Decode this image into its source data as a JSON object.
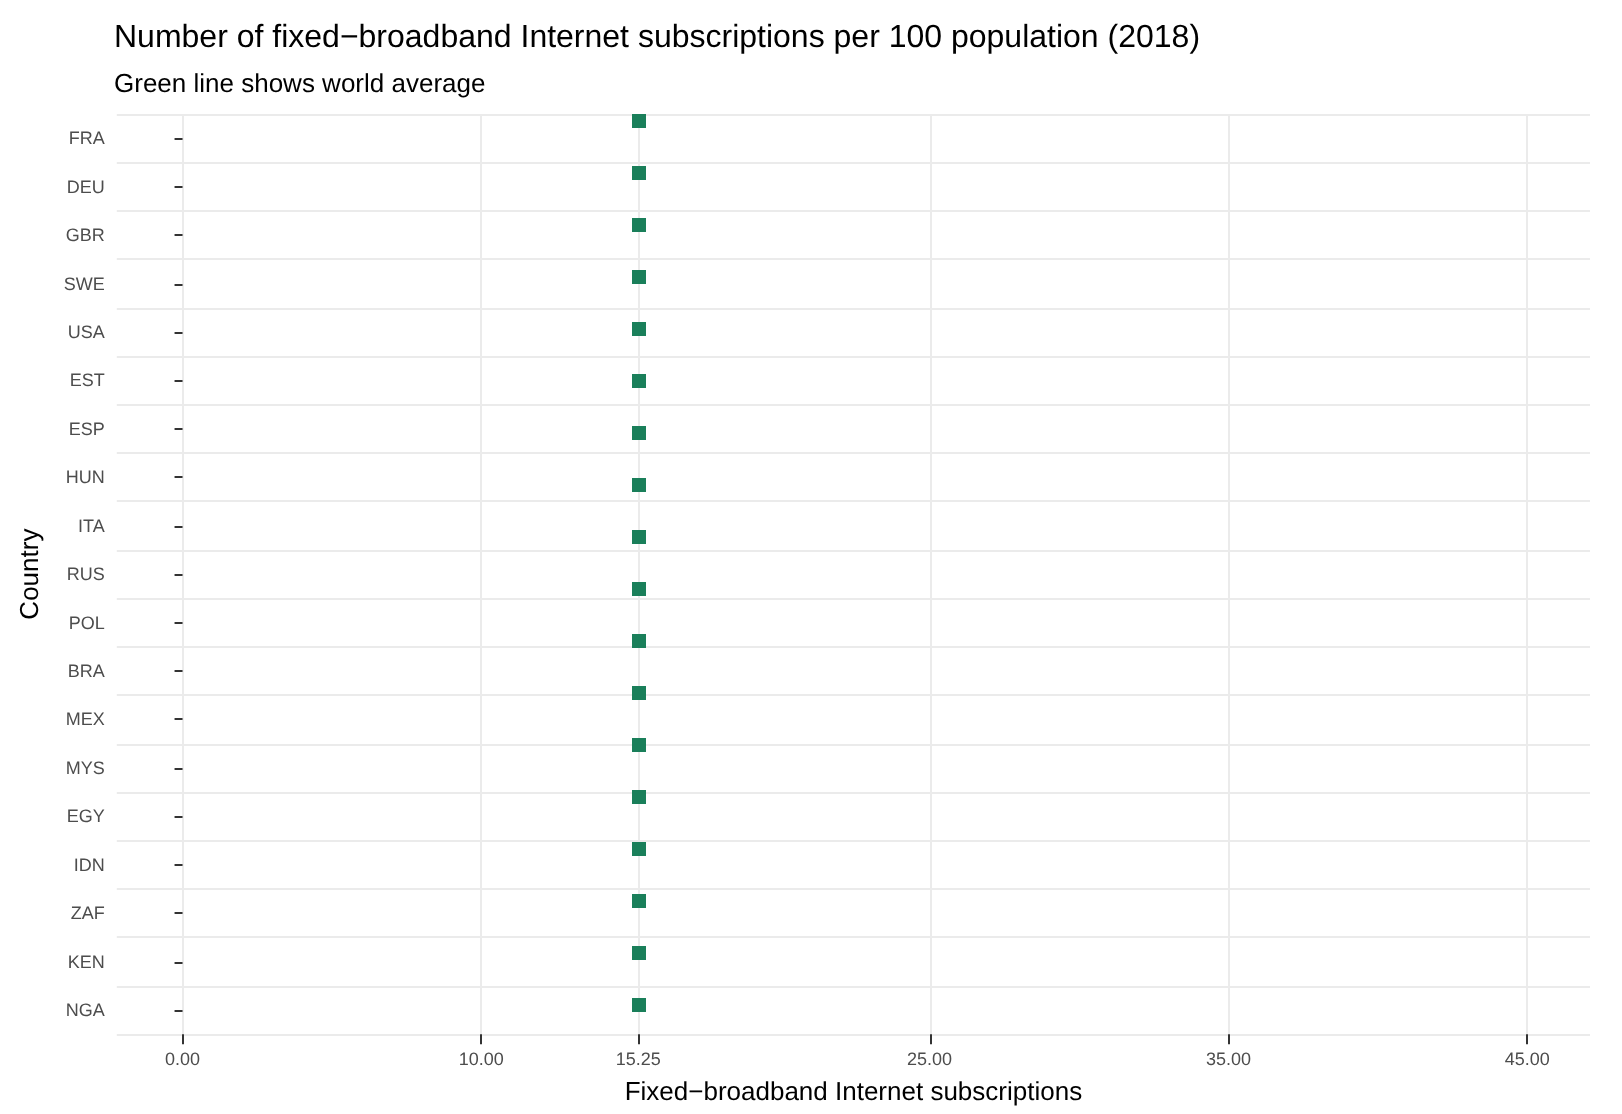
{
  "chart_data": {
    "type": "scatter",
    "orientation": "horizontal",
    "title": "Number of fixed−broadband Internet subscriptions per 100 population (2018)",
    "subtitle": "Green line shows world average",
    "xlabel": "Fixed−broadband Internet subscriptions",
    "ylabel": "Country",
    "categories": [
      "FRA",
      "DEU",
      "GBR",
      "SWE",
      "USA",
      "EST",
      "ESP",
      "HUN",
      "ITA",
      "RUS",
      "POL",
      "BRA",
      "MEX",
      "MYS",
      "EGY",
      "IDN",
      "ZAF",
      "KEN",
      "NGA"
    ],
    "values": [
      null,
      null,
      null,
      null,
      null,
      null,
      null,
      null,
      null,
      null,
      null,
      null,
      null,
      null,
      null,
      null,
      null,
      null,
      null
    ],
    "xlim": [
      -2.2,
      47.1
    ],
    "xticks": [
      {
        "value": 0,
        "label": "0.00"
      },
      {
        "value": 10,
        "label": "10.00"
      },
      {
        "value": 15.25,
        "label": "15.25"
      },
      {
        "value": 25,
        "label": "25.00"
      },
      {
        "value": 35,
        "label": "35.00"
      },
      {
        "value": 45,
        "label": "45.00"
      }
    ],
    "ref_lines": [
      {
        "axis": "x",
        "value": 15.25,
        "color": "#1a7f5a",
        "line_style": "dotted"
      }
    ],
    "grid": true
  }
}
